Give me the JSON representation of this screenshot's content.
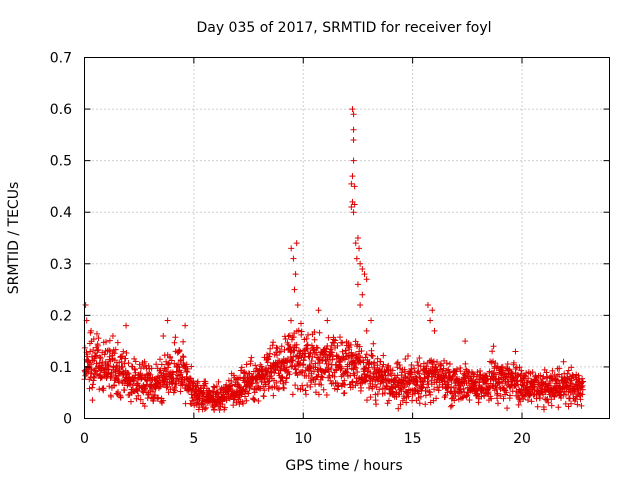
{
  "chart_data": {
    "type": "scatter",
    "title": "Day 035 of 2017, SRMTID for receiver foyl",
    "xlabel": "GPS time / hours",
    "ylabel": "SRMTID / TECUs",
    "xlim": [
      0,
      24
    ],
    "ylim": [
      0,
      0.7
    ],
    "xticks": [
      "0",
      "5",
      "10",
      "15",
      "20"
    ],
    "yticks": [
      "0",
      "0.1",
      "0.2",
      "0.3",
      "0.4",
      "0.5",
      "0.6",
      "0.7"
    ],
    "grid": true,
    "marker": "+",
    "marker_color": "#e00000",
    "x_end_hours": 22.8,
    "profile": [
      {
        "x": 0.0,
        "y": 0.1
      },
      {
        "x": 0.5,
        "y": 0.11
      },
      {
        "x": 1.0,
        "y": 0.1
      },
      {
        "x": 1.5,
        "y": 0.1
      },
      {
        "x": 2.0,
        "y": 0.08
      },
      {
        "x": 3.0,
        "y": 0.07
      },
      {
        "x": 4.0,
        "y": 0.09
      },
      {
        "x": 4.5,
        "y": 0.09
      },
      {
        "x": 5.0,
        "y": 0.05
      },
      {
        "x": 6.0,
        "y": 0.04
      },
      {
        "x": 7.0,
        "y": 0.06
      },
      {
        "x": 8.0,
        "y": 0.08
      },
      {
        "x": 9.0,
        "y": 0.1
      },
      {
        "x": 9.5,
        "y": 0.13
      },
      {
        "x": 10.0,
        "y": 0.11
      },
      {
        "x": 11.0,
        "y": 0.11
      },
      {
        "x": 12.0,
        "y": 0.1
      },
      {
        "x": 13.0,
        "y": 0.09
      },
      {
        "x": 14.0,
        "y": 0.07
      },
      {
        "x": 15.0,
        "y": 0.07
      },
      {
        "x": 16.0,
        "y": 0.08
      },
      {
        "x": 17.0,
        "y": 0.07
      },
      {
        "x": 18.0,
        "y": 0.06
      },
      {
        "x": 19.0,
        "y": 0.08
      },
      {
        "x": 20.0,
        "y": 0.06
      },
      {
        "x": 21.0,
        "y": 0.06
      },
      {
        "x": 22.0,
        "y": 0.06
      },
      {
        "x": 22.8,
        "y": 0.06
      }
    ],
    "peaks": [
      {
        "x": 0.05,
        "y": 0.22
      },
      {
        "x": 0.1,
        "y": 0.19
      },
      {
        "x": 0.3,
        "y": 0.17
      },
      {
        "x": 1.3,
        "y": 0.16
      },
      {
        "x": 1.9,
        "y": 0.18
      },
      {
        "x": 3.6,
        "y": 0.16
      },
      {
        "x": 3.8,
        "y": 0.19
      },
      {
        "x": 4.6,
        "y": 0.18
      },
      {
        "x": 9.45,
        "y": 0.33
      },
      {
        "x": 9.55,
        "y": 0.31
      },
      {
        "x": 9.7,
        "y": 0.34
      },
      {
        "x": 9.65,
        "y": 0.28
      },
      {
        "x": 9.6,
        "y": 0.25
      },
      {
        "x": 9.75,
        "y": 0.22
      },
      {
        "x": 10.7,
        "y": 0.21
      },
      {
        "x": 11.1,
        "y": 0.19
      },
      {
        "x": 12.25,
        "y": 0.6
      },
      {
        "x": 12.3,
        "y": 0.59
      },
      {
        "x": 12.3,
        "y": 0.56
      },
      {
        "x": 12.3,
        "y": 0.54
      },
      {
        "x": 12.3,
        "y": 0.5
      },
      {
        "x": 12.25,
        "y": 0.47
      },
      {
        "x": 12.2,
        "y": 0.455
      },
      {
        "x": 12.35,
        "y": 0.45
      },
      {
        "x": 12.25,
        "y": 0.42
      },
      {
        "x": 12.35,
        "y": 0.415
      },
      {
        "x": 12.2,
        "y": 0.41
      },
      {
        "x": 12.3,
        "y": 0.4
      },
      {
        "x": 12.5,
        "y": 0.35
      },
      {
        "x": 12.4,
        "y": 0.34
      },
      {
        "x": 12.55,
        "y": 0.33
      },
      {
        "x": 12.45,
        "y": 0.31
      },
      {
        "x": 12.6,
        "y": 0.3
      },
      {
        "x": 12.7,
        "y": 0.29
      },
      {
        "x": 12.8,
        "y": 0.28
      },
      {
        "x": 12.9,
        "y": 0.27
      },
      {
        "x": 12.5,
        "y": 0.26
      },
      {
        "x": 12.7,
        "y": 0.24
      },
      {
        "x": 12.6,
        "y": 0.22
      },
      {
        "x": 13.1,
        "y": 0.19
      },
      {
        "x": 12.9,
        "y": 0.17
      },
      {
        "x": 15.7,
        "y": 0.22
      },
      {
        "x": 15.9,
        "y": 0.21
      },
      {
        "x": 15.8,
        "y": 0.19
      },
      {
        "x": 16.0,
        "y": 0.17
      },
      {
        "x": 17.4,
        "y": 0.15
      },
      {
        "x": 18.7,
        "y": 0.14
      },
      {
        "x": 19.7,
        "y": 0.13
      },
      {
        "x": 21.9,
        "y": 0.11
      }
    ]
  }
}
